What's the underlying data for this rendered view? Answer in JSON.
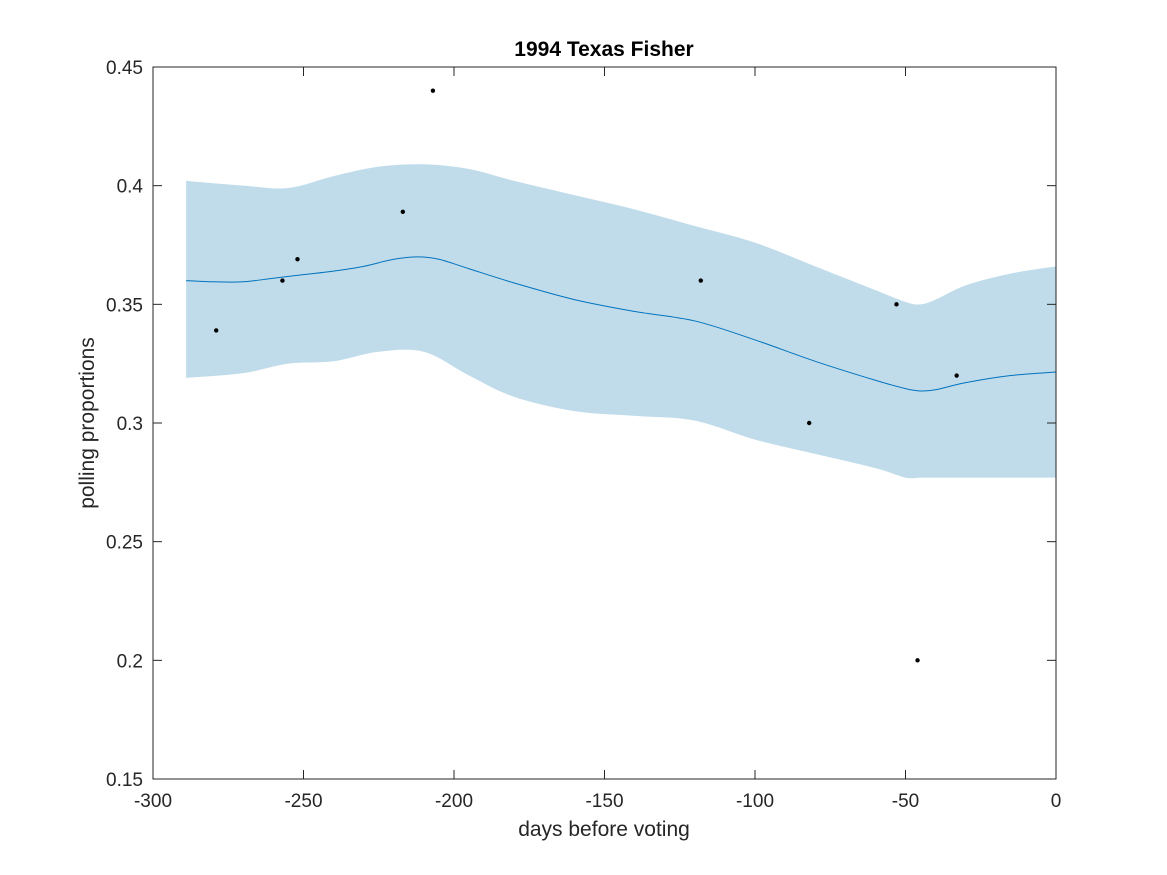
{
  "chart_data": {
    "type": "line",
    "title": "1994 Texas Fisher",
    "xlabel": "days before voting",
    "ylabel": "polling proportions",
    "xlim": [
      -300,
      0
    ],
    "ylim": [
      0.15,
      0.45
    ],
    "x_ticks": [
      -300,
      -250,
      -200,
      -150,
      -100,
      -50,
      0
    ],
    "x_tick_labels": [
      "-300",
      "-250",
      "-200",
      "-150",
      "-100",
      "-50",
      "0"
    ],
    "y_ticks": [
      0.15,
      0.2,
      0.25,
      0.3,
      0.35,
      0.4,
      0.45
    ],
    "y_tick_labels": [
      "0.15",
      "0.2",
      "0.25",
      "0.3",
      "0.35",
      "0.4",
      "0.45"
    ],
    "grid": false,
    "legend": "none",
    "colors": {
      "trend_line": "#0072bd",
      "band_fill": "#c0dceb",
      "points": "#000000",
      "axes": "#262626"
    },
    "series": [
      {
        "type": "area",
        "role": "confidence band",
        "x": [
          -289,
          -270,
          -255,
          -240,
          -225,
          -210,
          -195,
          -180,
          -160,
          -140,
          -120,
          -100,
          -80,
          -60,
          -50,
          -45,
          -40,
          -30,
          -15,
          0
        ],
        "upper": [
          0.402,
          0.4,
          0.399,
          0.404,
          0.408,
          0.409,
          0.407,
          0.402,
          0.396,
          0.39,
          0.383,
          0.376,
          0.366,
          0.356,
          0.351,
          0.35,
          0.352,
          0.358,
          0.363,
          0.366
        ],
        "lower": [
          0.319,
          0.321,
          0.325,
          0.326,
          0.33,
          0.33,
          0.32,
          0.311,
          0.305,
          0.303,
          0.301,
          0.293,
          0.287,
          0.281,
          0.277,
          0.277,
          0.277,
          0.277,
          0.277,
          0.277
        ]
      },
      {
        "type": "line",
        "role": "trend",
        "x": [
          -289,
          -280,
          -270,
          -260,
          -250,
          -240,
          -230,
          -220,
          -212,
          -205,
          -195,
          -180,
          -160,
          -140,
          -120,
          -100,
          -80,
          -60,
          -50,
          -45,
          -40,
          -30,
          -15,
          0
        ],
        "values": [
          0.36,
          0.3595,
          0.3595,
          0.361,
          0.3625,
          0.364,
          0.366,
          0.369,
          0.37,
          0.369,
          0.365,
          0.359,
          0.352,
          0.347,
          0.343,
          0.335,
          0.326,
          0.318,
          0.3145,
          0.3135,
          0.314,
          0.317,
          0.32,
          0.3215
        ]
      },
      {
        "type": "scatter",
        "role": "polls",
        "x": [
          -279,
          -257,
          -252,
          -217,
          -207,
          -118,
          -82,
          -53,
          -46,
          -33
        ],
        "values": [
          0.339,
          0.36,
          0.369,
          0.389,
          0.44,
          0.36,
          0.3,
          0.35,
          0.2,
          0.32
        ]
      }
    ]
  }
}
